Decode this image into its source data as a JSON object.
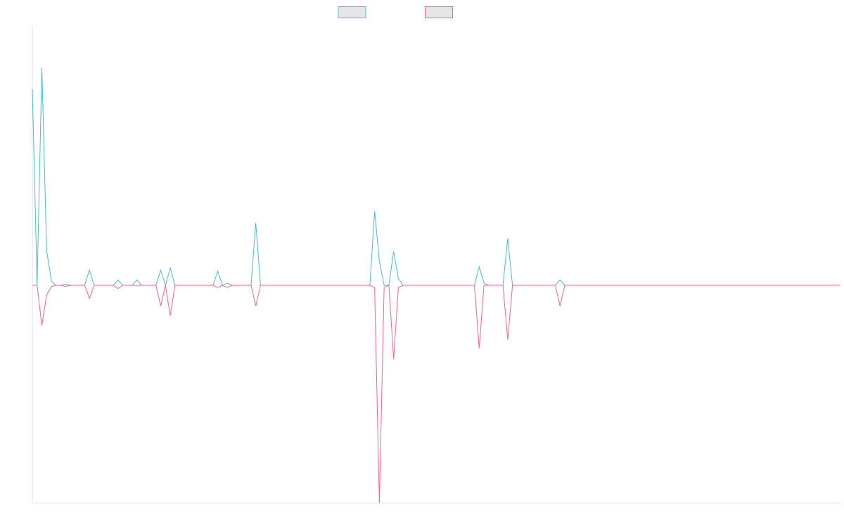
{
  "chart_data": {
    "type": "line",
    "title": "",
    "xlabel": "",
    "ylabel": "",
    "legend": {
      "placement": "top-center",
      "entries": [
        {
          "label": "",
          "color": "#4bc0c0",
          "fill": "#e6e6e6"
        },
        {
          "label": "",
          "color": "#ff6384",
          "fill": "#e6e6e6"
        }
      ]
    },
    "grid": false,
    "x_count": 171,
    "ylim": [
      -100,
      100
    ],
    "series": [
      {
        "color": "#4bc0c0",
        "points": [
          [
            0,
            90
          ],
          [
            1,
            0
          ],
          [
            2,
            100
          ],
          [
            3,
            16
          ],
          [
            4,
            2
          ],
          [
            5,
            0
          ],
          [
            6,
            0
          ],
          [
            7,
            0.5
          ],
          [
            8,
            0
          ],
          [
            9,
            0
          ],
          [
            10,
            0
          ],
          [
            11,
            0
          ],
          [
            12,
            7
          ],
          [
            13,
            0
          ],
          [
            14,
            0
          ],
          [
            15,
            0
          ],
          [
            16,
            0
          ],
          [
            17,
            0
          ],
          [
            18,
            2.5
          ],
          [
            19,
            0
          ],
          [
            20,
            0
          ],
          [
            21,
            0
          ],
          [
            22,
            2.5
          ],
          [
            23,
            0
          ],
          [
            24,
            0
          ],
          [
            25,
            0
          ],
          [
            26,
            0
          ],
          [
            27,
            7
          ],
          [
            28,
            0
          ],
          [
            29,
            8
          ],
          [
            30,
            0
          ],
          [
            31,
            0
          ],
          [
            32,
            0
          ],
          [
            33,
            0
          ],
          [
            34,
            0
          ],
          [
            35,
            0
          ],
          [
            36,
            0
          ],
          [
            37,
            0
          ],
          [
            38,
            0
          ],
          [
            39,
            6.5
          ],
          [
            40,
            0
          ],
          [
            41,
            1
          ],
          [
            42,
            0
          ],
          [
            43,
            0
          ],
          [
            44,
            0
          ],
          [
            45,
            0
          ],
          [
            46,
            0
          ],
          [
            47,
            28.5
          ],
          [
            48,
            0
          ],
          [
            49,
            0
          ],
          [
            50,
            0
          ],
          [
            51,
            0
          ],
          [
            52,
            0
          ],
          [
            53,
            0
          ],
          [
            54,
            0
          ],
          [
            55,
            0
          ],
          [
            56,
            0
          ],
          [
            57,
            0
          ],
          [
            58,
            0
          ],
          [
            59,
            0
          ],
          [
            60,
            0
          ],
          [
            61,
            0
          ],
          [
            62,
            0
          ],
          [
            63,
            0
          ],
          [
            64,
            0
          ],
          [
            65,
            0
          ],
          [
            66,
            0
          ],
          [
            67,
            0
          ],
          [
            68,
            0
          ],
          [
            69,
            0
          ],
          [
            70,
            0
          ],
          [
            71,
            0
          ],
          [
            72,
            34
          ],
          [
            73,
            11
          ],
          [
            74,
            0
          ],
          [
            75,
            0
          ],
          [
            76,
            15.5
          ],
          [
            77,
            3
          ],
          [
            78,
            0
          ],
          [
            79,
            0
          ],
          [
            80,
            0
          ],
          [
            81,
            0
          ],
          [
            82,
            0
          ],
          [
            83,
            0
          ],
          [
            84,
            0
          ],
          [
            85,
            0
          ],
          [
            86,
            0
          ],
          [
            87,
            0
          ],
          [
            88,
            0
          ],
          [
            89,
            0
          ],
          [
            90,
            0
          ],
          [
            91,
            0
          ],
          [
            92,
            0
          ],
          [
            93,
            0
          ],
          [
            94,
            8.5
          ],
          [
            95,
            1
          ],
          [
            96,
            0
          ],
          [
            97,
            0
          ],
          [
            98,
            0
          ],
          [
            99,
            0
          ],
          [
            100,
            21.5
          ],
          [
            101,
            0
          ],
          [
            102,
            0
          ],
          [
            103,
            0
          ],
          [
            104,
            0
          ],
          [
            105,
            0
          ],
          [
            106,
            0
          ],
          [
            107,
            0
          ],
          [
            108,
            0
          ],
          [
            109,
            0
          ],
          [
            110,
            0
          ],
          [
            111,
            2.5
          ],
          [
            112,
            0
          ],
          [
            113,
            0
          ],
          [
            114,
            0
          ],
          [
            115,
            0
          ],
          [
            116,
            0
          ],
          [
            117,
            0
          ],
          [
            118,
            0
          ],
          [
            119,
            0
          ],
          [
            120,
            0
          ],
          [
            121,
            0
          ],
          [
            122,
            0
          ],
          [
            123,
            0
          ],
          [
            124,
            0
          ],
          [
            125,
            0
          ],
          [
            126,
            0
          ],
          [
            127,
            0
          ],
          [
            128,
            0
          ],
          [
            129,
            0
          ],
          [
            130,
            0
          ],
          [
            131,
            0
          ],
          [
            132,
            0
          ],
          [
            133,
            0
          ],
          [
            134,
            0
          ],
          [
            135,
            0
          ],
          [
            136,
            0
          ],
          [
            137,
            0
          ],
          [
            138,
            0
          ],
          [
            139,
            0
          ],
          [
            140,
            0
          ],
          [
            141,
            0
          ],
          [
            142,
            0
          ],
          [
            143,
            0
          ],
          [
            144,
            0
          ],
          [
            145,
            0
          ],
          [
            146,
            0
          ],
          [
            147,
            0
          ],
          [
            148,
            0
          ],
          [
            149,
            0
          ],
          [
            150,
            0
          ],
          [
            151,
            0
          ],
          [
            152,
            0
          ],
          [
            153,
            0
          ],
          [
            154,
            0
          ],
          [
            155,
            0
          ],
          [
            156,
            0
          ],
          [
            157,
            0
          ],
          [
            158,
            0
          ],
          [
            159,
            0
          ],
          [
            160,
            0
          ],
          [
            161,
            0
          ],
          [
            162,
            0
          ],
          [
            163,
            0
          ],
          [
            164,
            0
          ],
          [
            165,
            0
          ],
          [
            166,
            0
          ],
          [
            167,
            0
          ],
          [
            168,
            0
          ],
          [
            169,
            0
          ],
          [
            170,
            0
          ]
        ]
      },
      {
        "color": "#ff6384",
        "points": [
          [
            0,
            0
          ],
          [
            1,
            0
          ],
          [
            2,
            -18.5
          ],
          [
            3,
            -4.5
          ],
          [
            4,
            -0.5
          ],
          [
            5,
            0
          ],
          [
            6,
            0
          ],
          [
            7,
            -0.5
          ],
          [
            8,
            0
          ],
          [
            9,
            0
          ],
          [
            10,
            0
          ],
          [
            11,
            0
          ],
          [
            12,
            -6
          ],
          [
            13,
            0
          ],
          [
            14,
            0
          ],
          [
            15,
            0
          ],
          [
            16,
            0
          ],
          [
            17,
            0
          ],
          [
            18,
            -1.5
          ],
          [
            19,
            0
          ],
          [
            20,
            0
          ],
          [
            21,
            0
          ],
          [
            22,
            0
          ],
          [
            23,
            0
          ],
          [
            24,
            0
          ],
          [
            25,
            0
          ],
          [
            26,
            0
          ],
          [
            27,
            -9.5
          ],
          [
            28,
            0
          ],
          [
            29,
            -14
          ],
          [
            30,
            0
          ],
          [
            31,
            0
          ],
          [
            32,
            0
          ],
          [
            33,
            0
          ],
          [
            34,
            0
          ],
          [
            35,
            0
          ],
          [
            36,
            0
          ],
          [
            37,
            0
          ],
          [
            38,
            0
          ],
          [
            39,
            -1
          ],
          [
            40,
            0
          ],
          [
            41,
            -1
          ],
          [
            42,
            0
          ],
          [
            43,
            0
          ],
          [
            44,
            0
          ],
          [
            45,
            0
          ],
          [
            46,
            0
          ],
          [
            47,
            -9.5
          ],
          [
            48,
            0
          ],
          [
            49,
            0
          ],
          [
            50,
            0
          ],
          [
            51,
            0
          ],
          [
            52,
            0
          ],
          [
            53,
            0
          ],
          [
            54,
            0
          ],
          [
            55,
            0
          ],
          [
            56,
            0
          ],
          [
            57,
            0
          ],
          [
            58,
            0
          ],
          [
            59,
            0
          ],
          [
            60,
            0
          ],
          [
            61,
            0
          ],
          [
            62,
            0
          ],
          [
            63,
            0
          ],
          [
            64,
            0
          ],
          [
            65,
            0
          ],
          [
            66,
            0
          ],
          [
            67,
            0
          ],
          [
            68,
            0
          ],
          [
            69,
            0
          ],
          [
            70,
            0
          ],
          [
            71,
            0
          ],
          [
            72,
            -1
          ],
          [
            73,
            -100
          ],
          [
            74,
            -1
          ],
          [
            75,
            0
          ],
          [
            76,
            -34
          ],
          [
            77,
            -1
          ],
          [
            78,
            0
          ],
          [
            79,
            0
          ],
          [
            80,
            0
          ],
          [
            81,
            0
          ],
          [
            82,
            0
          ],
          [
            83,
            0
          ],
          [
            84,
            0
          ],
          [
            85,
            0
          ],
          [
            86,
            0
          ],
          [
            87,
            0
          ],
          [
            88,
            0
          ],
          [
            89,
            0
          ],
          [
            90,
            0
          ],
          [
            91,
            0
          ],
          [
            92,
            0
          ],
          [
            93,
            0
          ],
          [
            94,
            -29
          ],
          [
            95,
            0
          ],
          [
            96,
            0
          ],
          [
            97,
            0
          ],
          [
            98,
            0
          ],
          [
            99,
            0
          ],
          [
            100,
            -25
          ],
          [
            101,
            0
          ],
          [
            102,
            0
          ],
          [
            103,
            0
          ],
          [
            104,
            0
          ],
          [
            105,
            0
          ],
          [
            106,
            0
          ],
          [
            107,
            0
          ],
          [
            108,
            0
          ],
          [
            109,
            0
          ],
          [
            110,
            0
          ],
          [
            111,
            -9.5
          ],
          [
            112,
            0
          ],
          [
            113,
            0
          ],
          [
            114,
            0
          ],
          [
            115,
            0
          ],
          [
            116,
            0
          ],
          [
            117,
            0
          ],
          [
            118,
            0
          ],
          [
            119,
            0
          ],
          [
            120,
            0
          ],
          [
            121,
            0
          ],
          [
            122,
            0
          ],
          [
            123,
            0
          ],
          [
            124,
            0
          ],
          [
            125,
            0
          ],
          [
            126,
            0
          ],
          [
            127,
            0
          ],
          [
            128,
            0
          ],
          [
            129,
            0
          ],
          [
            130,
            0
          ],
          [
            131,
            0
          ],
          [
            132,
            0
          ],
          [
            133,
            0
          ],
          [
            134,
            0
          ],
          [
            135,
            0
          ],
          [
            136,
            0
          ],
          [
            137,
            0
          ],
          [
            138,
            0
          ],
          [
            139,
            0
          ],
          [
            140,
            0
          ],
          [
            141,
            0
          ],
          [
            142,
            0
          ],
          [
            143,
            0
          ],
          [
            144,
            0
          ],
          [
            145,
            0
          ],
          [
            146,
            0
          ],
          [
            147,
            0
          ],
          [
            148,
            0
          ],
          [
            149,
            0
          ],
          [
            150,
            0
          ],
          [
            151,
            0
          ],
          [
            152,
            0
          ],
          [
            153,
            0
          ],
          [
            154,
            0
          ],
          [
            155,
            0
          ],
          [
            156,
            0
          ],
          [
            157,
            0
          ],
          [
            158,
            0
          ],
          [
            159,
            0
          ],
          [
            160,
            0
          ],
          [
            161,
            0
          ],
          [
            162,
            0
          ],
          [
            163,
            0
          ],
          [
            164,
            0
          ],
          [
            165,
            0
          ],
          [
            166,
            0
          ],
          [
            167,
            0
          ],
          [
            168,
            0
          ],
          [
            169,
            0
          ],
          [
            170,
            0
          ]
        ]
      }
    ]
  }
}
